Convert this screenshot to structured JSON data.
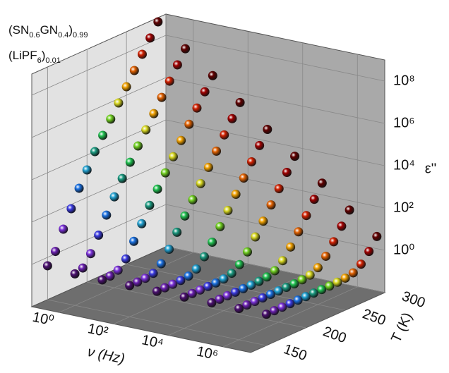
{
  "chart_data": {
    "type": "scatter3d",
    "annotation": {
      "line1": [
        "(SN",
        "0.6",
        "GN",
        "0.4",
        ")",
        "0.99"
      ],
      "line2": [
        "(LiPF",
        "6",
        ")",
        "0.01"
      ]
    },
    "x_label": "ν (Hz)",
    "y_label": "T (K)",
    "z_label": "ε''",
    "x": [
      0.1,
      1,
      10,
      100,
      1000,
      10000,
      100000,
      1000000,
      10000000
    ],
    "xlim": [
      0.1,
      10000000
    ],
    "xticks": [
      {
        "value": 1,
        "label": "10⁰"
      },
      {
        "value": 100,
        "label": "10²"
      },
      {
        "value": 10000,
        "label": "10⁴"
      },
      {
        "value": 1000000,
        "label": "10⁶"
      }
    ],
    "x_log": true,
    "ylim": [
      130,
      300
    ],
    "yticks": [
      150,
      200,
      250,
      300
    ],
    "zlim": [
      0.01,
      1000000000.0
    ],
    "zticks": [
      {
        "value": 1,
        "label": "10⁰"
      },
      {
        "value": 100,
        "label": "10²"
      },
      {
        "value": 10000,
        "label": "10⁴"
      },
      {
        "value": 1000000,
        "label": "10⁶"
      },
      {
        "value": 100000000,
        "label": "10⁸"
      }
    ],
    "z_log": true,
    "grid": true,
    "series": [
      {
        "t": 150,
        "color": "#4b1070",
        "values": [
          0.4,
          0.31,
          0.3,
          0.3,
          0.3,
          0.3,
          0.3,
          0.3,
          0.3
        ]
      },
      {
        "t": 160,
        "color": "#6a1fb0",
        "values": [
          1.3,
          0.4,
          0.31,
          0.3,
          0.3,
          0.3,
          0.3,
          0.3,
          0.3
        ]
      },
      {
        "t": 170,
        "color": "#7a30d8",
        "values": [
          10,
          1.3,
          0.4,
          0.31,
          0.3,
          0.3,
          0.3,
          0.3,
          0.3
        ]
      },
      {
        "t": 180,
        "color": "#3a3ae0",
        "values": [
          63,
          6.6,
          0.93,
          0.36,
          0.31,
          0.3,
          0.3,
          0.3,
          0.3
        ]
      },
      {
        "t": 190,
        "color": "#1a70e0",
        "values": [
          400,
          40,
          4.3,
          0.7,
          0.34,
          0.3,
          0.3,
          0.3,
          0.3
        ]
      },
      {
        "t": 200,
        "color": "#20a0d0",
        "values": [
          2000,
          200,
          20,
          2.3,
          0.5,
          0.32,
          0.3,
          0.3,
          0.3
        ]
      },
      {
        "t": 210,
        "color": "#1a9a80",
        "values": [
          10000,
          1000,
          100,
          10,
          1.3,
          0.4,
          0.31,
          0.3,
          0.3
        ]
      },
      {
        "t": 220,
        "color": "#20c050",
        "values": [
          40000,
          4000,
          400,
          40,
          4.3,
          0.7,
          0.34,
          0.3,
          0.3
        ]
      },
      {
        "t": 230,
        "color": "#70d020",
        "values": [
          160000,
          16000,
          1600,
          160,
          16,
          1.9,
          0.46,
          0.32,
          0.3
        ]
      },
      {
        "t": 240,
        "color": "#d8d820",
        "values": [
          630000,
          63000,
          6300,
          630,
          63,
          6.6,
          0.93,
          0.36,
          0.31
        ]
      },
      {
        "t": 250,
        "color": "#f0a000",
        "values": [
          2500000,
          250000,
          25000,
          2500,
          250,
          25,
          2.8,
          0.55,
          0.33
        ]
      },
      {
        "t": 260,
        "color": "#e06000",
        "values": [
          10000000,
          1000000,
          100000,
          10000,
          1000,
          100,
          10,
          1.3,
          0.4
        ]
      },
      {
        "t": 270,
        "color": "#d02000",
        "values": [
          40000000,
          4000000,
          400000,
          40000,
          4000,
          400,
          40,
          4.3,
          0.7
        ]
      },
      {
        "t": 280,
        "color": "#a00000",
        "values": [
          160000000,
          16000000,
          1600000,
          160000,
          16000,
          1600,
          160,
          16,
          1.9
        ]
      },
      {
        "t": 290,
        "color": "#600000",
        "values": [
          630000000,
          63000000,
          6300000,
          630000,
          63000,
          6300,
          630,
          63,
          6.6
        ]
      }
    ]
  }
}
